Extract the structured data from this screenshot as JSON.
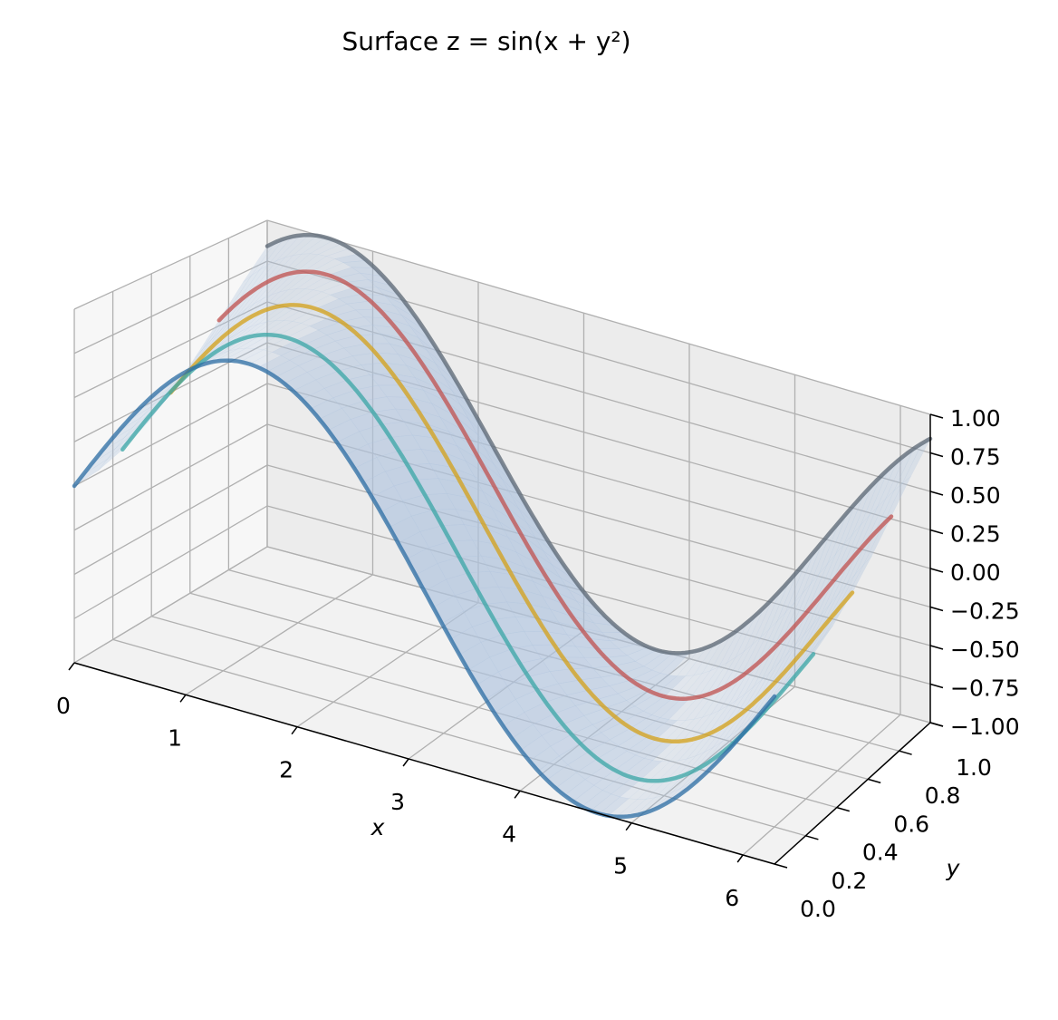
{
  "chart_data": {
    "type": "surface3d",
    "title": "Surface z = sin(x + y²)",
    "function": "z = sin(x + y^2)",
    "xlabel": "x",
    "ylabel": "y",
    "zlabel": "",
    "xlim": [
      0,
      6.283
    ],
    "ylim": [
      0,
      1
    ],
    "zlim": [
      -1,
      1
    ],
    "xticks": [
      "0",
      "1",
      "2",
      "3",
      "4",
      "5",
      "6"
    ],
    "yticks": [
      "0.0",
      "0.2",
      "0.4",
      "0.6",
      "0.8",
      "1.0"
    ],
    "zticks": [
      "−1.00",
      "−0.75",
      "−0.50",
      "−0.25",
      "0.00",
      "0.25",
      "0.50",
      "0.75",
      "1.00"
    ],
    "grid": true,
    "surface_color": "#b0c4de",
    "series": [
      {
        "y": 0.0,
        "color": "#2b6ca3",
        "values_note": "sin(x)"
      },
      {
        "y": 0.25,
        "color": "#3aa6a6",
        "values_note": "sin(x+0.0625)"
      },
      {
        "y": 0.5,
        "color": "#d4a017",
        "values_note": "sin(x+0.25)"
      },
      {
        "y": 0.75,
        "color": "#c0504d",
        "values_note": "sin(x+0.5625)"
      },
      {
        "y": 1.0,
        "color": "#5a6673",
        "values_note": "sin(x+1)"
      }
    ]
  }
}
